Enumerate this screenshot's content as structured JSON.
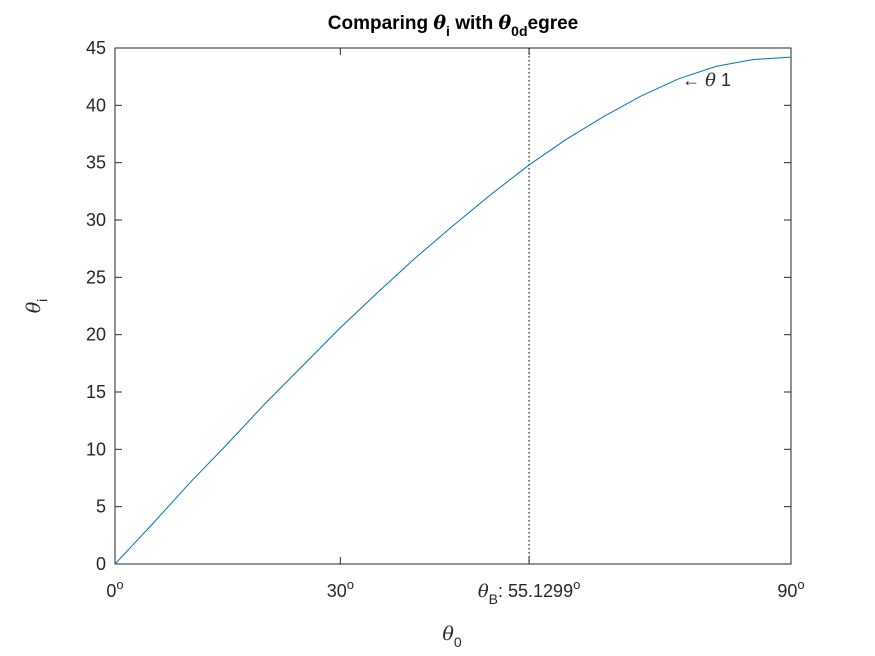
{
  "chart_data": {
    "type": "line",
    "title": {
      "prefix": "Comparing ",
      "sym1": "θ",
      "sub1": "i",
      "mid": " with ",
      "sym2": "θ",
      "sub2": "0d",
      "suffix": "egree"
    },
    "xlabel": {
      "sym": "θ",
      "sub": "0"
    },
    "ylabel": {
      "sym": "θ",
      "sub": "i"
    },
    "xlim": [
      0,
      90
    ],
    "ylim": [
      0,
      45
    ],
    "yticks": [
      0,
      5,
      10,
      15,
      20,
      25,
      30,
      35,
      40,
      45
    ],
    "xticks": [
      {
        "value": 0,
        "text": "0",
        "sup": "o"
      },
      {
        "value": 30,
        "text": "30",
        "sup": "o"
      },
      {
        "value": 55.1299,
        "sym": "θ",
        "sub": "B",
        "text": ": 55.1299",
        "sup": "o"
      },
      {
        "value": 90,
        "text": "90",
        "sup": "o"
      }
    ],
    "series": [
      {
        "x": [
          0,
          5,
          10,
          15,
          20,
          25,
          30,
          35,
          40,
          45,
          50,
          55.1299,
          60,
          65,
          70,
          75,
          80,
          85,
          90
        ],
        "y": [
          0,
          3.5,
          7.1,
          10.5,
          14.0,
          17.3,
          20.6,
          23.7,
          26.7,
          29.5,
          32.2,
          34.8,
          37.0,
          39.0,
          40.8,
          42.3,
          43.4,
          44.0,
          44.2
        ]
      }
    ],
    "reference_line": {
      "x": 55.1299,
      "style": "dotted"
    },
    "annotation": {
      "arrow": "←",
      "sym": "θ",
      "text": " 1",
      "x": 75.5,
      "y": 42.2
    },
    "grid": false,
    "colors": {
      "line": "#0072bd",
      "axis": "#262626",
      "reference": "#000000"
    }
  }
}
